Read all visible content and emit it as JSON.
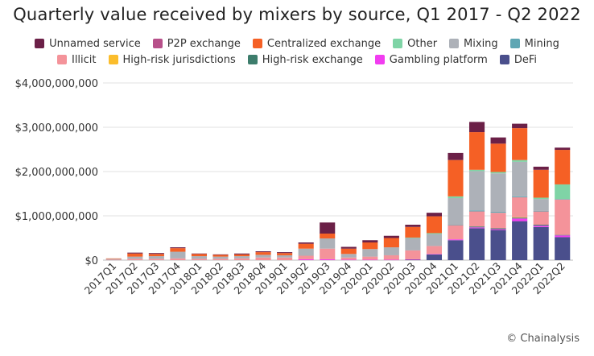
{
  "chart_data": {
    "type": "bar",
    "stacked": true,
    "title": "Quarterly value received by mixers by source, Q1 2017 - Q2 2022",
    "xlabel": "",
    "ylabel": "",
    "ylim": [
      0,
      4000000000
    ],
    "yticks": [
      0,
      1000000000,
      2000000000,
      3000000000,
      4000000000
    ],
    "ytick_labels": [
      "$0",
      "$1,000,000,000",
      "$2,000,000,000",
      "$3,000,000,000",
      "$4,000,000,000"
    ],
    "grid": true,
    "legend_position": "top",
    "categories": [
      "2017Q1",
      "2017Q2",
      "2017Q3",
      "2017Q4",
      "2018Q1",
      "2018Q2",
      "2018Q3",
      "2018Q4",
      "2019Q1",
      "2019Q2",
      "2019Q3",
      "2019Q4",
      "2020Q1",
      "2020Q2",
      "2020Q3",
      "2020Q4",
      "2021Q1",
      "2021Q2",
      "2021Q3",
      "2021Q4",
      "2022Q1",
      "2022Q2"
    ],
    "series": [
      {
        "name": "DeFi",
        "color": "#4a4f8c",
        "values": [
          0,
          0,
          0,
          0,
          0,
          0,
          0,
          0,
          0,
          0,
          0,
          0,
          0,
          0,
          10000000,
          130000000,
          450000000,
          720000000,
          680000000,
          880000000,
          750000000,
          520000000
        ]
      },
      {
        "name": "Gambling platform",
        "color": "#f13df0",
        "values": [
          0,
          0,
          0,
          0,
          0,
          0,
          0,
          0,
          0,
          20000000,
          20000000,
          10000000,
          10000000,
          10000000,
          10000000,
          10000000,
          20000000,
          20000000,
          20000000,
          60000000,
          30000000,
          40000000
        ]
      },
      {
        "name": "High-risk exchange",
        "color": "#3d7d6c",
        "values": [
          0,
          0,
          0,
          0,
          0,
          0,
          0,
          0,
          0,
          0,
          0,
          0,
          0,
          0,
          0,
          0,
          0,
          20000000,
          20000000,
          20000000,
          20000000,
          10000000
        ]
      },
      {
        "name": "High-risk jurisdictions",
        "color": "#fbbd2c",
        "values": [
          0,
          0,
          0,
          0,
          0,
          0,
          0,
          0,
          0,
          0,
          0,
          0,
          0,
          0,
          0,
          0,
          0,
          0,
          0,
          10000000,
          0,
          0
        ]
      },
      {
        "name": "Illicit",
        "color": "#f4939a",
        "values": [
          10000000,
          30000000,
          30000000,
          40000000,
          30000000,
          30000000,
          40000000,
          60000000,
          60000000,
          80000000,
          240000000,
          50000000,
          70000000,
          100000000,
          200000000,
          180000000,
          320000000,
          340000000,
          350000000,
          450000000,
          300000000,
          800000000
        ]
      },
      {
        "name": "Mining",
        "color": "#5ea6b3",
        "values": [
          0,
          0,
          0,
          0,
          0,
          0,
          0,
          0,
          0,
          0,
          0,
          0,
          0,
          0,
          0,
          0,
          10000000,
          20000000,
          20000000,
          20000000,
          10000000,
          10000000
        ]
      },
      {
        "name": "Mixing",
        "color": "#adb1b8",
        "values": [
          20000000,
          50000000,
          60000000,
          150000000,
          60000000,
          50000000,
          50000000,
          60000000,
          50000000,
          160000000,
          230000000,
          80000000,
          170000000,
          180000000,
          280000000,
          270000000,
          600000000,
          890000000,
          870000000,
          780000000,
          270000000,
          0
        ]
      },
      {
        "name": "Other",
        "color": "#7fd4a6",
        "values": [
          0,
          0,
          0,
          0,
          0,
          0,
          0,
          0,
          0,
          0,
          0,
          0,
          0,
          0,
          10000000,
          20000000,
          40000000,
          30000000,
          30000000,
          40000000,
          30000000,
          330000000
        ]
      },
      {
        "name": "Centralized exchange",
        "color": "#f56025",
        "values": [
          10000000,
          70000000,
          50000000,
          80000000,
          50000000,
          40000000,
          40000000,
          60000000,
          50000000,
          110000000,
          110000000,
          120000000,
          150000000,
          210000000,
          240000000,
          380000000,
          820000000,
          850000000,
          640000000,
          720000000,
          630000000,
          780000000
        ]
      },
      {
        "name": "P2P exchange",
        "color": "#b7508a",
        "values": [
          0,
          0,
          0,
          0,
          0,
          0,
          0,
          0,
          0,
          0,
          0,
          0,
          0,
          0,
          0,
          0,
          0,
          0,
          0,
          0,
          0,
          0
        ]
      },
      {
        "name": "Unnamed service",
        "color": "#6b2047",
        "values": [
          0,
          20000000,
          20000000,
          20000000,
          10000000,
          10000000,
          20000000,
          20000000,
          20000000,
          30000000,
          250000000,
          40000000,
          50000000,
          50000000,
          50000000,
          80000000,
          160000000,
          230000000,
          140000000,
          100000000,
          70000000,
          50000000
        ]
      }
    ]
  },
  "legend": {
    "row1": [
      {
        "label": "Unnamed service",
        "color": "#6b2047"
      },
      {
        "label": "P2P exchange",
        "color": "#b7508a"
      },
      {
        "label": "Centralized exchange",
        "color": "#f56025"
      },
      {
        "label": "Other",
        "color": "#7fd4a6"
      },
      {
        "label": "Mixing",
        "color": "#adb1b8"
      },
      {
        "label": "Mining",
        "color": "#5ea6b3"
      }
    ],
    "row2": [
      {
        "label": "Illicit",
        "color": "#f4939a"
      },
      {
        "label": "High-risk jurisdictions",
        "color": "#fbbd2c"
      },
      {
        "label": "High-risk exchange",
        "color": "#3d7d6c"
      },
      {
        "label": "Gambling platform",
        "color": "#f13df0"
      },
      {
        "label": "DeFi",
        "color": "#4a4f8c"
      }
    ]
  },
  "credit": "© Chainalysis"
}
